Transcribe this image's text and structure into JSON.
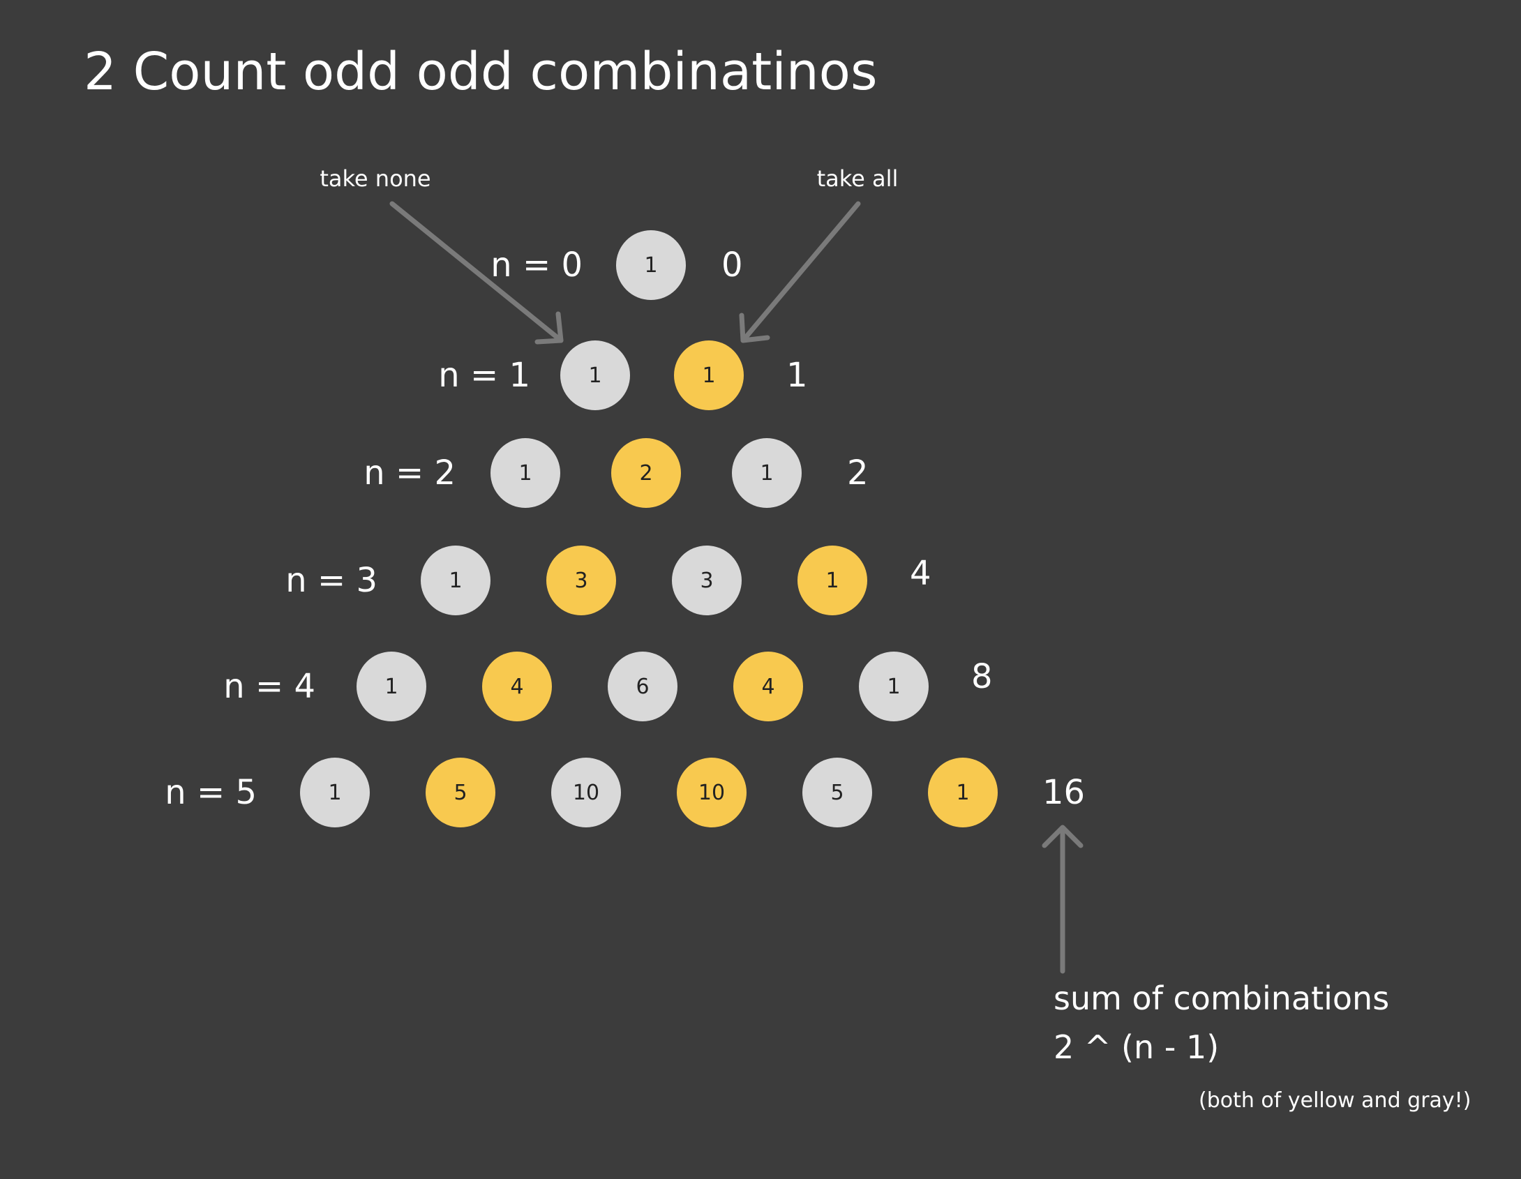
{
  "title": "2 Count odd odd combinatinos",
  "annotations": {
    "take_none": "take none",
    "take_all": "take all"
  },
  "rows": [
    {
      "label": "n = 0",
      "values": [
        "1"
      ],
      "colors": [
        "gray"
      ],
      "sum": "0"
    },
    {
      "label": "n = 1",
      "values": [
        "1",
        "1"
      ],
      "colors": [
        "gray",
        "yellow"
      ],
      "sum": "1"
    },
    {
      "label": "n = 2",
      "values": [
        "1",
        "2",
        "1"
      ],
      "colors": [
        "gray",
        "yellow",
        "gray"
      ],
      "sum": "2"
    },
    {
      "label": "n = 3",
      "values": [
        "1",
        "3",
        "3",
        "1"
      ],
      "colors": [
        "gray",
        "yellow",
        "gray",
        "yellow"
      ],
      "sum": "4"
    },
    {
      "label": "n = 4",
      "values": [
        "1",
        "4",
        "6",
        "4",
        "1"
      ],
      "colors": [
        "gray",
        "yellow",
        "gray",
        "yellow",
        "gray"
      ],
      "sum": "8"
    },
    {
      "label": "n = 5",
      "values": [
        "1",
        "5",
        "10",
        "10",
        "5",
        "1"
      ],
      "colors": [
        "gray",
        "yellow",
        "gray",
        "yellow",
        "gray",
        "yellow"
      ],
      "sum": "16"
    }
  ],
  "note": {
    "line1": "sum of combinations",
    "line2": "2 ^ (n - 1)",
    "line3": "(both of yellow and gray!)"
  },
  "colors": {
    "background": "#3c3c3c",
    "gray_node": "#d9d9d9",
    "yellow_node": "#f8c94f",
    "arrow": "#7a7a7a",
    "text": "#ffffff"
  }
}
